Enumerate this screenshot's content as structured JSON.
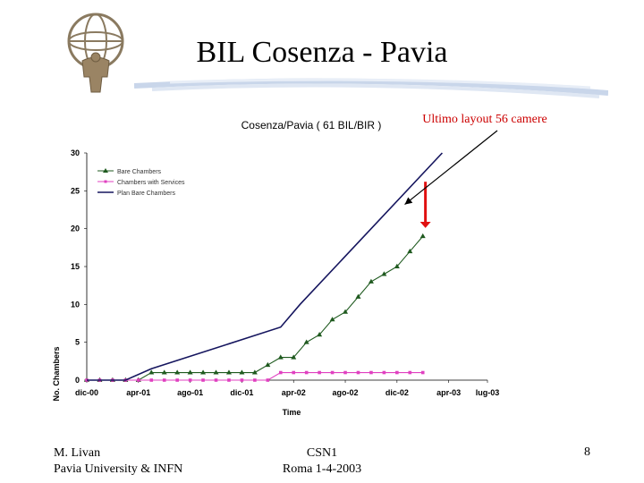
{
  "slide": {
    "title": "BIL Cosenza - Pavia",
    "footer_left_line1": "M. Livan",
    "footer_left_line2": "Pavia University & INFN",
    "footer_center_line1": "CSN1",
    "footer_center_line2": "Roma 1-4-2003",
    "page_number": "8"
  },
  "colors": {
    "bare": "#1f5a1f",
    "services": "#e040c0",
    "plan": "#15155e",
    "arrow_red": "#e01010",
    "annotation": "#cc0000"
  },
  "chart_data": {
    "type": "line",
    "title": "Cosenza/Pavia ( 61 BIL/BIR )",
    "xlabel": "Time",
    "ylabel": "No. Chambers",
    "ylim": [
      0,
      30
    ],
    "yticks": [
      0,
      5,
      10,
      15,
      20,
      25,
      30
    ],
    "xlim": [
      0,
      31
    ],
    "xticks": [
      {
        "label": "dic-00",
        "x": 0
      },
      {
        "label": "apr-01",
        "x": 4
      },
      {
        "label": "ago-01",
        "x": 8
      },
      {
        "label": "dic-01",
        "x": 12
      },
      {
        "label": "apr-02",
        "x": 16
      },
      {
        "label": "ago-02",
        "x": 20
      },
      {
        "label": "dic-02",
        "x": 24
      },
      {
        "label": "apr-03",
        "x": 28
      },
      {
        "label": "lug-03",
        "x": 31
      }
    ],
    "legend_position": "top-left",
    "annotation": "Ultimo layout 56 camere",
    "series": [
      {
        "name": "Bare Chambers",
        "color": "#1f5a1f",
        "marker": "triangle",
        "points": [
          [
            0,
            0
          ],
          [
            1,
            0
          ],
          [
            2,
            0
          ],
          [
            3,
            0
          ],
          [
            4,
            0
          ],
          [
            5,
            1
          ],
          [
            6,
            1
          ],
          [
            7,
            1
          ],
          [
            8,
            1
          ],
          [
            9,
            1
          ],
          [
            10,
            1
          ],
          [
            11,
            1
          ],
          [
            12,
            1
          ],
          [
            13,
            1
          ],
          [
            14,
            2
          ],
          [
            15,
            3
          ],
          [
            16,
            3
          ],
          [
            17,
            5
          ],
          [
            18,
            6
          ],
          [
            19,
            8
          ],
          [
            20,
            9
          ],
          [
            21,
            11
          ],
          [
            22,
            13
          ],
          [
            23,
            14
          ],
          [
            24,
            15
          ],
          [
            25,
            17
          ],
          [
            26,
            19
          ]
        ]
      },
      {
        "name": "Chambers with Services",
        "color": "#e040c0",
        "marker": "square",
        "points": [
          [
            0,
            0
          ],
          [
            1,
            0
          ],
          [
            2,
            0
          ],
          [
            3,
            0
          ],
          [
            4,
            0
          ],
          [
            5,
            0
          ],
          [
            6,
            0
          ],
          [
            7,
            0
          ],
          [
            8,
            0
          ],
          [
            9,
            0
          ],
          [
            10,
            0
          ],
          [
            11,
            0
          ],
          [
            12,
            0
          ],
          [
            13,
            0
          ],
          [
            14,
            0
          ],
          [
            15,
            1
          ],
          [
            16,
            1
          ],
          [
            17,
            1
          ],
          [
            18,
            1
          ],
          [
            19,
            1
          ],
          [
            20,
            1
          ],
          [
            21,
            1
          ],
          [
            22,
            1
          ],
          [
            23,
            1
          ],
          [
            24,
            1
          ],
          [
            25,
            1
          ],
          [
            26,
            1
          ]
        ]
      },
      {
        "name": "Plan Bare Chambers",
        "color": "#15155e",
        "marker": "none",
        "points": [
          [
            0,
            0
          ],
          [
            3,
            0
          ],
          [
            5,
            1.5
          ],
          [
            15,
            7
          ],
          [
            16.5,
            10
          ],
          [
            27.5,
            30
          ]
        ]
      }
    ]
  }
}
